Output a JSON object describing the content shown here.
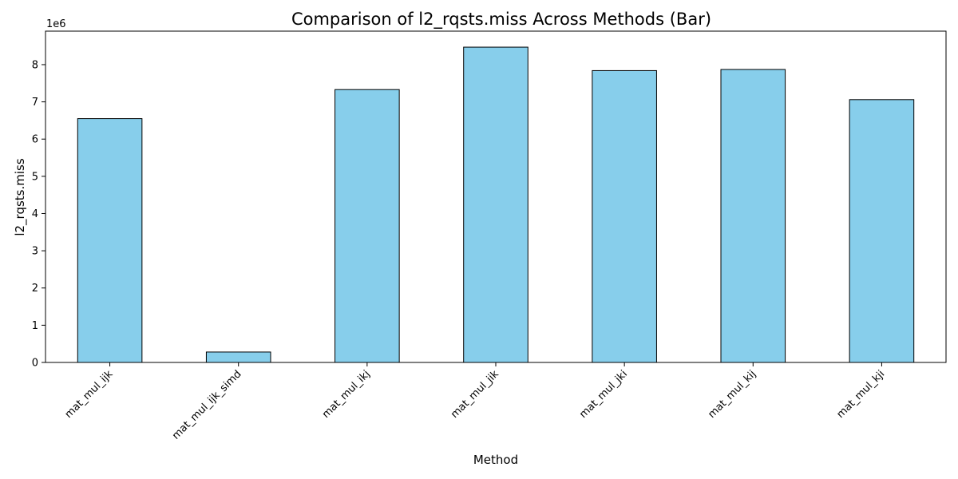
{
  "chart_data": {
    "type": "bar",
    "title": "Comparison of l2_rqsts.miss Across Methods (Bar)",
    "xlabel": "Method",
    "ylabel": "l2_rqsts.miss",
    "y_offset_label": "1e6",
    "categories": [
      "mat_mul_ijk",
      "mat_mul_ijk_simd",
      "mat_mul_ikj",
      "mat_mul_jik",
      "mat_mul_jki",
      "mat_mul_kij",
      "mat_mul_kji"
    ],
    "values": [
      6550000,
      280000,
      7330000,
      8470000,
      7840000,
      7870000,
      7060000
    ],
    "ylim": [
      0,
      8900000
    ],
    "yticks": [
      0,
      1,
      2,
      3,
      4,
      5,
      6,
      7,
      8
    ],
    "ytick_scale": 1000000,
    "grid": false,
    "bar_color": "#87ceeb",
    "bar_edge_color": "#000000"
  }
}
